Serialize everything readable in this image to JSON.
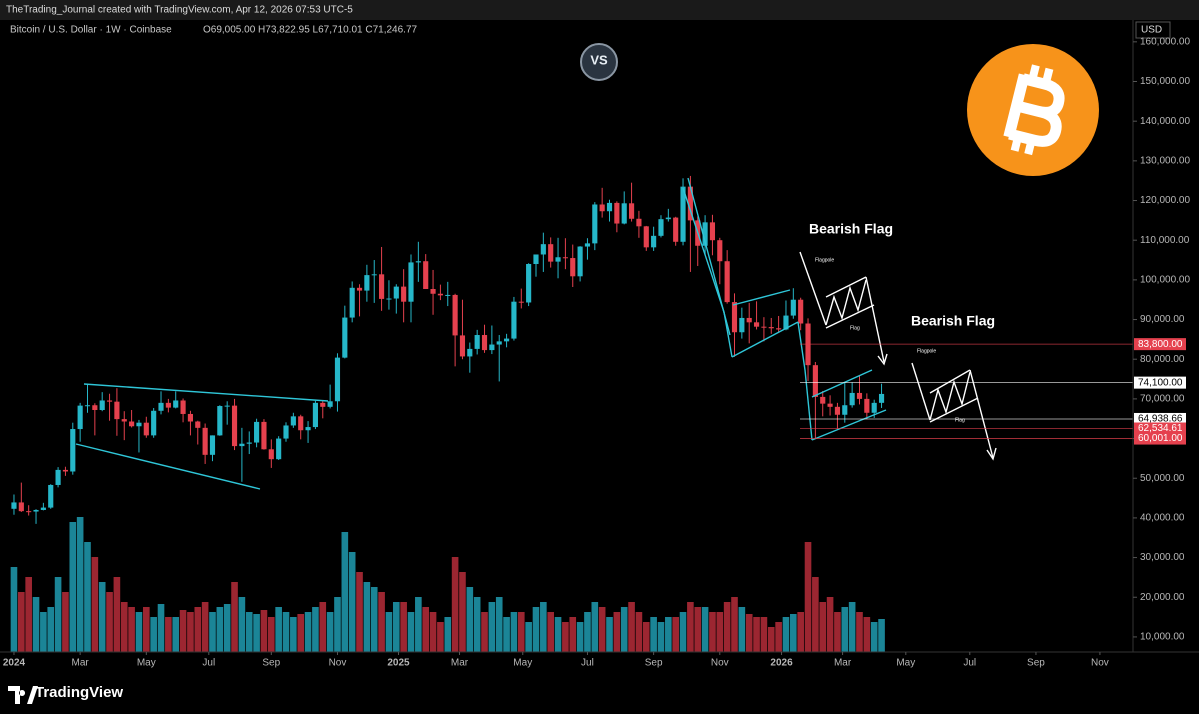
{
  "chart_data": {
    "type": "candlestick",
    "header": "TheTrading_Journal created with TradingView.com, Apr 12, 2026 07:53 UTC-5",
    "symbol": "Bitcoin / U.S. Dollar · 1W · Coinbase",
    "ohlc_readout": "O69,005.00 H73,822.95 L67,710.01 C71,246.77",
    "currency": "USD",
    "brand": "TradingView",
    "logo_text": "VS",
    "annotations": [
      "Bearish Flag",
      "Flagpole",
      "Flag",
      "Bearish Flag",
      "Flagpole",
      "Flag"
    ],
    "up_color": "#26b7c9",
    "down_color": "#e5414e",
    "volume_up_color": "#1b8597",
    "volume_down_color": "#9c2631",
    "ylim": [
      6200,
      165000
    ],
    "yticks": [
      {
        "value": 10000,
        "label": "10,000.00"
      },
      {
        "value": 20000,
        "label": "20,000.00"
      },
      {
        "value": 30000,
        "label": "30,000.00"
      },
      {
        "value": 40000,
        "label": "40,000.00"
      },
      {
        "value": 50000,
        "label": "50,000.00"
      },
      {
        "value": 60000,
        "label": "60,000.00"
      },
      {
        "value": 70000,
        "label": "70,000.00"
      },
      {
        "value": 80000,
        "label": "80,000.00"
      },
      {
        "value": 90000,
        "label": "90,000.00"
      },
      {
        "value": 100000,
        "label": "100,000.00"
      },
      {
        "value": 110000,
        "label": "110,000.00"
      },
      {
        "value": 120000,
        "label": "120,000.00"
      },
      {
        "value": 130000,
        "label": "130,000.00"
      },
      {
        "value": 140000,
        "label": "140,000.00"
      },
      {
        "value": 150000,
        "label": "150,000.00"
      },
      {
        "value": 160000,
        "label": "160,000.00"
      }
    ],
    "xlim": [
      -1.9,
      152.2
    ],
    "xticks": [
      {
        "value": 0,
        "label": "2024"
      },
      {
        "value": 9,
        "label": "Mar"
      },
      {
        "value": 18,
        "label": "May"
      },
      {
        "value": 26.5,
        "label": "Jul"
      },
      {
        "value": 35,
        "label": "Sep"
      },
      {
        "value": 44,
        "label": "Nov"
      },
      {
        "value": 52.3,
        "label": "2025"
      },
      {
        "value": 60.6,
        "label": "Mar"
      },
      {
        "value": 69.2,
        "label": "May"
      },
      {
        "value": 78,
        "label": "Jul"
      },
      {
        "value": 87,
        "label": "Sep"
      },
      {
        "value": 96,
        "label": "Nov"
      },
      {
        "value": 104.4,
        "label": "2026"
      },
      {
        "value": 112.7,
        "label": "Mar"
      },
      {
        "value": 121.3,
        "label": "May"
      },
      {
        "value": 130,
        "label": "Jul"
      },
      {
        "value": 139,
        "label": "Sep"
      },
      {
        "value": 147.7,
        "label": "Nov"
      }
    ],
    "price_lines": [
      {
        "value": 83800,
        "label": "83,800.00",
        "color": "#e5414e"
      },
      {
        "value": 74100,
        "label": "74,100.00",
        "color": "#ffffff"
      },
      {
        "value": 64938.66,
        "label": "64,938.66",
        "color": "#ffffff"
      },
      {
        "value": 62534.61,
        "label": "62,534.61",
        "color": "#e5414e"
      },
      {
        "value": 60001,
        "label": "60,001.00",
        "color": "#e5414e"
      }
    ],
    "ohlc": [
      [
        42300,
        45900,
        40800,
        43900
      ],
      [
        43900,
        48900,
        41500,
        41700
      ],
      [
        41700,
        43200,
        40600,
        41600
      ],
      [
        41600,
        42200,
        38500,
        42000
      ],
      [
        42000,
        43800,
        41900,
        42600
      ],
      [
        42600,
        48500,
        42300,
        48300
      ],
      [
        48300,
        52800,
        47700,
        52100
      ],
      [
        52100,
        52900,
        50600,
        51700
      ],
      [
        51700,
        64000,
        50900,
        62400
      ],
      [
        62400,
        69000,
        59200,
        68300
      ],
      [
        68300,
        73800,
        66500,
        68400
      ],
      [
        68400,
        68900,
        60800,
        67200
      ],
      [
        67200,
        71700,
        66900,
        69600
      ],
      [
        69600,
        71300,
        64500,
        69300
      ],
      [
        69300,
        72700,
        60700,
        64900
      ],
      [
        64900,
        66900,
        59600,
        64300
      ],
      [
        64300,
        67200,
        62800,
        63100
      ],
      [
        63100,
        64700,
        56500,
        64000
      ],
      [
        64000,
        65500,
        60200,
        60800
      ],
      [
        60800,
        67700,
        60200,
        67000
      ],
      [
        67000,
        71900,
        66100,
        69000
      ],
      [
        69000,
        70000,
        66600,
        67800
      ],
      [
        67800,
        71900,
        67600,
        69600
      ],
      [
        69600,
        70100,
        64100,
        66200
      ],
      [
        66200,
        67000,
        60800,
        64300
      ],
      [
        64300,
        64500,
        58500,
        62700
      ],
      [
        62700,
        63800,
        53600,
        55900
      ],
      [
        55900,
        60800,
        54300,
        60800
      ],
      [
        60800,
        68400,
        60700,
        68200
      ],
      [
        68200,
        69400,
        63500,
        68300
      ],
      [
        68300,
        70000,
        57100,
        58100
      ],
      [
        58100,
        62700,
        49100,
        58700
      ],
      [
        58700,
        61800,
        56100,
        59000
      ],
      [
        59000,
        65000,
        57800,
        64200
      ],
      [
        64200,
        64900,
        57200,
        57300
      ],
      [
        57300,
        59800,
        52600,
        54800
      ],
      [
        54800,
        60600,
        54600,
        60000
      ],
      [
        60000,
        64100,
        59200,
        63300
      ],
      [
        63300,
        66500,
        62700,
        65600
      ],
      [
        65600,
        66000,
        59800,
        62100
      ],
      [
        62100,
        64400,
        58900,
        62900
      ],
      [
        62900,
        69500,
        62400,
        69000
      ],
      [
        69000,
        69500,
        65100,
        68000
      ],
      [
        68000,
        73600,
        67600,
        69400
      ],
      [
        69400,
        81500,
        66800,
        80400
      ],
      [
        80400,
        93500,
        80200,
        90500
      ],
      [
        90500,
        99600,
        89300,
        98000
      ],
      [
        98000,
        98900,
        90800,
        97300
      ],
      [
        97300,
        103800,
        94500,
        101200
      ],
      [
        101200,
        105000,
        94200,
        101400
      ],
      [
        101400,
        108300,
        92200,
        95200
      ],
      [
        95200,
        99900,
        92500,
        95300
      ],
      [
        95300,
        98900,
        91500,
        98300
      ],
      [
        98300,
        102700,
        89300,
        94500
      ],
      [
        94500,
        106400,
        89300,
        104400
      ],
      [
        104400,
        109600,
        99500,
        104700
      ],
      [
        104700,
        106500,
        97800,
        97700
      ],
      [
        97700,
        102500,
        91200,
        96500
      ],
      [
        96500,
        98800,
        94900,
        96100
      ],
      [
        96100,
        99500,
        93400,
        96200
      ],
      [
        96200,
        96500,
        78200,
        86000
      ],
      [
        86000,
        95000,
        80000,
        80700
      ],
      [
        80700,
        84200,
        76600,
        82600
      ],
      [
        82600,
        87400,
        81200,
        86100
      ],
      [
        86100,
        88700,
        81600,
        82300
      ],
      [
        82300,
        88500,
        81300,
        83700
      ],
      [
        83700,
        86100,
        74400,
        84500
      ],
      [
        84500,
        86400,
        83000,
        85200
      ],
      [
        85200,
        95700,
        84700,
        94500
      ],
      [
        94500,
        97800,
        92800,
        94300
      ],
      [
        94300,
        104200,
        93400,
        104000
      ],
      [
        104000,
        105800,
        100800,
        106400
      ],
      [
        106400,
        111900,
        102000,
        109000
      ],
      [
        109000,
        110700,
        103100,
        104600
      ],
      [
        104600,
        110600,
        100400,
        105700
      ],
      [
        105700,
        110500,
        102700,
        105500
      ],
      [
        105500,
        108900,
        98200,
        100900
      ],
      [
        100900,
        108500,
        99600,
        108400
      ],
      [
        108400,
        110500,
        105100,
        109200
      ],
      [
        109200,
        119600,
        107500,
        119000
      ],
      [
        119000,
        123200,
        115700,
        117300
      ],
      [
        117300,
        120200,
        114700,
        119400
      ],
      [
        119400,
        119800,
        112000,
        114200
      ],
      [
        114200,
        122300,
        114000,
        119300
      ],
      [
        119300,
        124500,
        114700,
        115400
      ],
      [
        115400,
        117400,
        110600,
        113500
      ],
      [
        113500,
        113600,
        107300,
        108200
      ],
      [
        108200,
        113400,
        107300,
        111100
      ],
      [
        111100,
        116300,
        110700,
        115300
      ],
      [
        115300,
        117900,
        114700,
        115700
      ],
      [
        115700,
        115900,
        108600,
        109600
      ],
      [
        109600,
        125600,
        108700,
        123500
      ],
      [
        123500,
        126200,
        102000,
        115000
      ],
      [
        115000,
        116000,
        103500,
        108600
      ],
      [
        108600,
        116300,
        106300,
        114500
      ],
      [
        114500,
        116400,
        106200,
        110000
      ],
      [
        110000,
        110600,
        98900,
        104700
      ],
      [
        104700,
        107500,
        94000,
        94400
      ],
      [
        94400,
        96600,
        80600,
        86800
      ],
      [
        86800,
        93000,
        85200,
        90400
      ],
      [
        90400,
        94200,
        84000,
        89300
      ],
      [
        89300,
        94600,
        87500,
        88200
      ],
      [
        88200,
        90600,
        84500,
        88100
      ],
      [
        88100,
        90400,
        86400,
        87800
      ],
      [
        87800,
        90900,
        86800,
        87500
      ],
      [
        87500,
        94800,
        87300,
        91000
      ],
      [
        91000,
        97900,
        90200,
        95000
      ],
      [
        95000,
        95500,
        87300,
        89000
      ],
      [
        89000,
        90300,
        74500,
        78500
      ],
      [
        78500,
        79300,
        60100,
        70500
      ],
      [
        70500,
        72000,
        65600,
        68800
      ],
      [
        68800,
        70900,
        65800,
        68000
      ],
      [
        68000,
        69000,
        62500,
        66000
      ],
      [
        66000,
        74000,
        64000,
        68400
      ],
      [
        68400,
        74200,
        67800,
        71500
      ],
      [
        71500,
        76000,
        68600,
        70000
      ],
      [
        70000,
        71400,
        64900,
        66500
      ],
      [
        66500,
        69800,
        65200,
        69000
      ],
      [
        69005,
        73822.95,
        67710.01,
        71246.77
      ]
    ],
    "volume": [
      85,
      60,
      75,
      55,
      40,
      45,
      75,
      60,
      130,
      135,
      110,
      95,
      70,
      60,
      75,
      50,
      45,
      40,
      45,
      35,
      48,
      35,
      35,
      42,
      40,
      45,
      50,
      40,
      45,
      48,
      70,
      55,
      40,
      38,
      42,
      35,
      45,
      40,
      35,
      38,
      40,
      45,
      50,
      40,
      55,
      120,
      100,
      80,
      70,
      65,
      60,
      40,
      50,
      50,
      40,
      55,
      45,
      40,
      30,
      35,
      95,
      80,
      65,
      55,
      40,
      50,
      55,
      35,
      40,
      40,
      30,
      45,
      50,
      40,
      35,
      30,
      35,
      30,
      40,
      50,
      45,
      35,
      40,
      45,
      50,
      40,
      30,
      35,
      30,
      35,
      35,
      40,
      50,
      45,
      45,
      40,
      40,
      50,
      55,
      45,
      38,
      35,
      35,
      25,
      30,
      35,
      38,
      40,
      110,
      75,
      50,
      55,
      40,
      45,
      50,
      40,
      35,
      30,
      33
    ]
  }
}
